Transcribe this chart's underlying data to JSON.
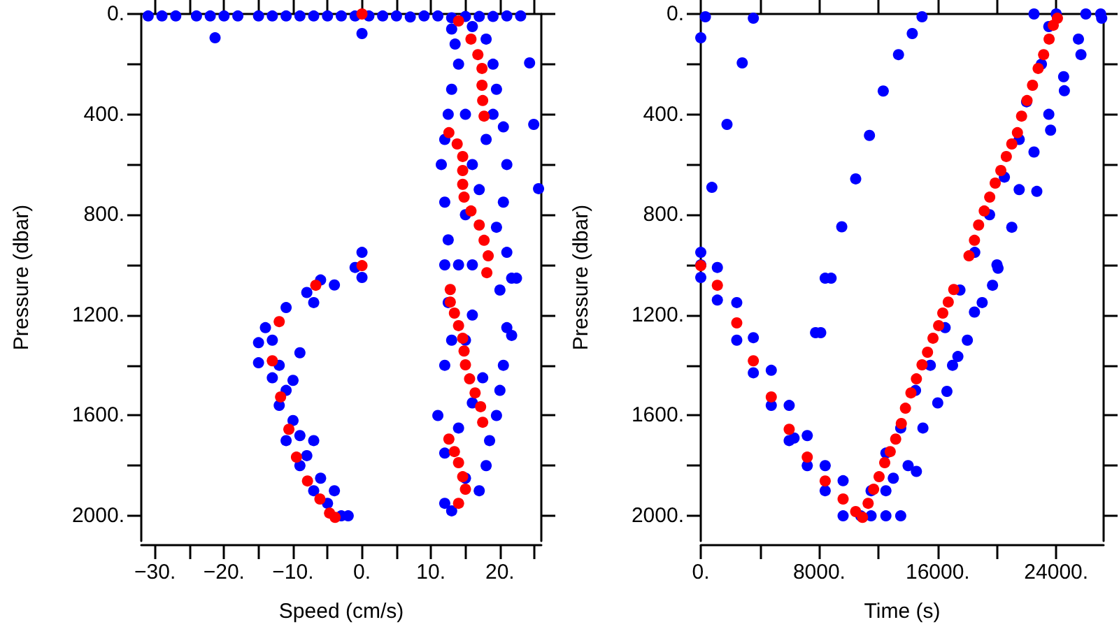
{
  "chart_data": [
    {
      "type": "scatter",
      "xlabel": "Speed (cm/s)",
      "ylabel": "Pressure (dbar)",
      "marker": "circle",
      "xlim": [
        -32,
        26
      ],
      "xticks": [
        {
          "value": -30,
          "label": "−30."
        },
        {
          "value": -25,
          "label": null
        },
        {
          "value": -20,
          "label": "−20."
        },
        {
          "value": -15,
          "label": null
        },
        {
          "value": -10,
          "label": "−10."
        },
        {
          "value": -5,
          "label": null
        },
        {
          "value": 0,
          "label": "0."
        },
        {
          "value": 5,
          "label": null
        },
        {
          "value": 10,
          "label": "10."
        },
        {
          "value": 15,
          "label": null
        },
        {
          "value": 20,
          "label": "20."
        },
        {
          "value": 25,
          "label": null
        }
      ],
      "ylim": [
        2100,
        0
      ],
      "yticks": [
        {
          "value": 0,
          "label": "0."
        },
        {
          "value": 200,
          "label": null
        },
        {
          "value": 400,
          "label": "400."
        },
        {
          "value": 600,
          "label": null
        },
        {
          "value": 800,
          "label": "800."
        },
        {
          "value": 1000,
          "label": null
        },
        {
          "value": 1200,
          "label": "1200."
        },
        {
          "value": 1400,
          "label": null
        },
        {
          "value": 1600,
          "label": "1600."
        },
        {
          "value": 1800,
          "label": null
        },
        {
          "value": 2000,
          "label": "2000."
        }
      ],
      "series": [
        {
          "color": "#0000ff",
          "x": [
            -31,
            -29,
            -27,
            -24,
            -22,
            -20,
            -18,
            -15,
            -13,
            -11,
            -9,
            -7,
            -5,
            -3,
            -1,
            1,
            3,
            5,
            7,
            9,
            11,
            13,
            15,
            17,
            19,
            21,
            23,
            -21.3,
            0,
            24.3,
            24.9,
            25.6,
            21.7,
            22.4,
            21.7,
            13,
            13.5,
            14,
            13,
            12.5,
            12,
            11.5,
            12,
            12.5,
            12,
            12.5,
            13,
            12,
            11,
            12,
            12,
            13,
            16,
            18,
            19,
            19.5,
            19,
            20.5,
            21,
            20.5,
            19.5,
            21,
            20,
            21,
            20.5,
            20,
            19.5,
            18.5,
            18,
            17,
            15,
            16,
            17,
            18,
            15,
            16,
            17.5,
            14,
            15,
            16,
            14,
            15,
            16,
            0,
            0,
            -1,
            -4,
            -6,
            -8,
            -11,
            -14,
            -15,
            -13,
            -15,
            -13,
            -11,
            -12,
            -10,
            -9,
            -11,
            -8,
            -9,
            -6,
            -7,
            -5,
            -3,
            -2,
            -9,
            -10,
            -7,
            -4,
            -12,
            -7
          ],
          "values": [
            8,
            8,
            8,
            8,
            8,
            8,
            8,
            8,
            8,
            8,
            8,
            8,
            8,
            8,
            8,
            8,
            8,
            8,
            12,
            8,
            8,
            15,
            10,
            10,
            10,
            8,
            8,
            95,
            78,
            195,
            440,
            696,
            1053,
            1053,
            1281,
            60,
            120,
            200,
            300,
            400,
            500,
            600,
            750,
            900,
            1000,
            1150,
            1300,
            1400,
            1600,
            1750,
            1950,
            1980,
            50,
            100,
            200,
            300,
            400,
            450,
            600,
            750,
            850,
            950,
            1100,
            1250,
            1400,
            1500,
            1600,
            1700,
            1800,
            1900,
            1300,
            1000,
            700,
            500,
            400,
            1200,
            1450,
            1650,
            1850,
            1550,
            1000,
            800,
            600,
            950,
            1050,
            1010,
            1080,
            1060,
            1110,
            1170,
            1250,
            1310,
            1300,
            1390,
            1450,
            1500,
            1560,
            1620,
            1680,
            1700,
            1760,
            1800,
            1850,
            1900,
            1950,
            2000,
            2000,
            1350,
            1460,
            1700,
            1900,
            1400,
            1150
          ]
        },
        {
          "color": "#ff0000",
          "x": [
            0,
            14.0,
            15.8,
            16.8,
            17.4,
            17.4,
            17.5,
            17.7,
            12.6,
            13.8,
            14.6,
            14.6,
            14.6,
            14.8,
            15.8,
            17.0,
            17.7,
            18.3,
            18.1,
            0,
            -6.7,
            -12.0,
            -13.0,
            -11.8,
            -10.6,
            -9.5,
            -7.9,
            -6.1,
            -4.7,
            -3.9,
            12.8,
            12.8,
            13.4,
            14.0,
            14.6,
            14.8,
            15.0,
            15.6,
            16.4,
            17.2,
            17.5,
            12.6,
            13.4,
            14.0,
            14.6,
            15.0,
            14.0
          ],
          "values": [
            0,
            28,
            100,
            162,
            217,
            284,
            345,
            407,
            473,
            518,
            568,
            624,
            679,
            730,
            785,
            841,
            902,
            964,
            1031,
            1003,
            1081,
            1226,
            1382,
            1526,
            1655,
            1766,
            1861,
            1933,
            1989,
            2006,
            1098,
            1148,
            1192,
            1242,
            1292,
            1343,
            1398,
            1454,
            1510,
            1565,
            1627,
            1694,
            1744,
            1788,
            1844,
            1894,
            1950
          ]
        }
      ]
    },
    {
      "type": "scatter",
      "xlabel": "Time (s)",
      "ylabel": "Pressure (dbar)",
      "marker": "circle",
      "xlim": [
        0,
        27200
      ],
      "xticks": [
        {
          "value": 0,
          "label": "0."
        },
        {
          "value": 4000,
          "label": null
        },
        {
          "value": 8000,
          "label": "8000."
        },
        {
          "value": 12000,
          "label": null
        },
        {
          "value": 16000,
          "label": "16000."
        },
        {
          "value": 20000,
          "label": null
        },
        {
          "value": 24000,
          "label": "24000."
        }
      ],
      "ylim": [
        2100,
        0
      ],
      "yticks": [
        {
          "value": 0,
          "label": "0."
        },
        {
          "value": 200,
          "label": null
        },
        {
          "value": 400,
          "label": "400."
        },
        {
          "value": 600,
          "label": null
        },
        {
          "value": 800,
          "label": "800."
        },
        {
          "value": 1000,
          "label": null
        },
        {
          "value": 1200,
          "label": "1200."
        },
        {
          "value": 1400,
          "label": null
        },
        {
          "value": 1600,
          "label": "1600."
        },
        {
          "value": 1800,
          "label": null
        },
        {
          "value": 2000,
          "label": "2000."
        }
      ],
      "series": [
        {
          "color": "#0000ff",
          "x": [
            0,
            0,
            0,
            0,
            310,
            3550,
            2800,
            1770,
            750,
            1120,
            1120,
            2430,
            2430,
            3550,
            3550,
            4760,
            4760,
            5970,
            5970,
            7190,
            7190,
            8400,
            8400,
            9610,
            9610,
            7750,
            8100,
            6300,
            8400,
            8800,
            9520,
            10460,
            11390,
            12320,
            13350,
            14280,
            14940,
            14560,
            16620,
            17360,
            18480,
            19700,
            20070,
            22690,
            23620,
            24550,
            25670,
            27070,
            10800,
            11500,
            12500,
            13500,
            11500,
            12500,
            13000,
            12500,
            14000,
            13500,
            15000,
            14500,
            16000,
            15500,
            17000,
            16500,
            18000,
            17500,
            19000,
            18500,
            20000,
            19500,
            21000,
            20500,
            21500,
            21500,
            22500,
            22000,
            23500,
            23000,
            24500,
            23500,
            25500,
            22500,
            24000,
            26000,
            27000
          ],
          "values": [
            1000,
            950,
            1050,
            95,
            11,
            17,
            195,
            440,
            691,
            1010,
            1140,
            1150,
            1300,
            1290,
            1430,
            1420,
            1560,
            1560,
            1700,
            1680,
            1800,
            1800,
            1900,
            1860,
            2000,
            1270,
            1270,
            1690,
            1053,
            1053,
            848,
            657,
            484,
            307,
            162,
            78,
            11,
            1823,
            1504,
            1365,
            1188,
            1081,
            1013,
            707,
            463,
            306,
            162,
            17,
            2000,
            2000,
            2000,
            2000,
            1900,
            1900,
            1850,
            1750,
            1800,
            1650,
            1650,
            1500,
            1550,
            1400,
            1400,
            1250,
            1300,
            1100,
            1150,
            950,
            1000,
            800,
            850,
            650,
            700,
            500,
            550,
            350,
            400,
            200,
            250,
            50,
            100,
            0,
            0,
            0,
            0
          ]
        },
        {
          "color": "#ff0000",
          "x": [
            0,
            1120,
            2430,
            3550,
            4760,
            5970,
            7190,
            8400,
            9610,
            10460,
            10920,
            11300,
            11670,
            12040,
            12420,
            12790,
            13160,
            13540,
            13820,
            14190,
            14560,
            14940,
            15310,
            15680,
            16060,
            16340,
            16710,
            17080,
            18110,
            18480,
            18760,
            19140,
            19510,
            19880,
            20260,
            20630,
            21000,
            21380,
            21660,
            22030,
            22400,
            22780,
            23150,
            23520,
            23800,
            24080
          ],
          "values": [
            1003,
            1081,
            1231,
            1382,
            1526,
            1655,
            1766,
            1861,
            1933,
            1983,
            2006,
            1950,
            1894,
            1844,
            1788,
            1744,
            1694,
            1632,
            1571,
            1510,
            1454,
            1398,
            1348,
            1292,
            1242,
            1192,
            1148,
            1098,
            964,
            902,
            841,
            785,
            730,
            674,
            624,
            568,
            518,
            473,
            407,
            345,
            284,
            217,
            162,
            100,
            45,
            17
          ]
        }
      ]
    }
  ]
}
